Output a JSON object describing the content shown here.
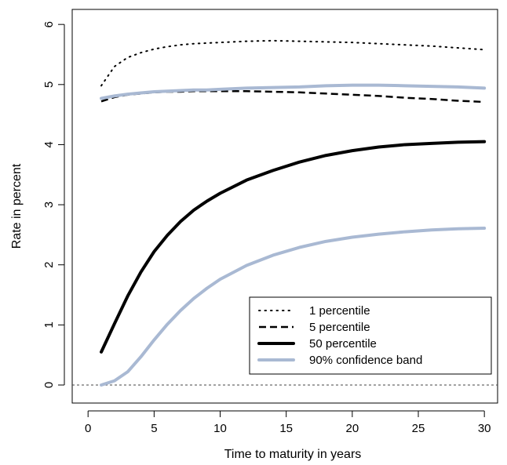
{
  "chart_data": {
    "type": "line",
    "xlabel": "Time to maturity in years",
    "ylabel": "Rate in percent",
    "xlim": [
      -1.2,
      31.0
    ],
    "ylim": [
      -0.3,
      6.25
    ],
    "x_ticks": [
      "0",
      "5",
      "10",
      "15",
      "20",
      "25",
      "30"
    ],
    "y_ticks": [
      "0",
      "1",
      "2",
      "3",
      "4",
      "5",
      "6"
    ],
    "reference_line": {
      "y": 0,
      "style": "dotted"
    },
    "legend_position": "bottom-right",
    "x": [
      1,
      2,
      3,
      4,
      5,
      6,
      7,
      8,
      9,
      10,
      12,
      14,
      16,
      18,
      20,
      22,
      24,
      26,
      28,
      30
    ],
    "series": [
      {
        "name": "1 percentile",
        "style": "dotted",
        "color": "#000000",
        "values": [
          4.98,
          5.3,
          5.45,
          5.53,
          5.59,
          5.63,
          5.66,
          5.68,
          5.69,
          5.7,
          5.72,
          5.73,
          5.72,
          5.71,
          5.7,
          5.68,
          5.66,
          5.64,
          5.61,
          5.58
        ]
      },
      {
        "name": "5 percentile",
        "style": "dashed",
        "color": "#000000",
        "values": [
          4.72,
          4.79,
          4.83,
          4.85,
          4.87,
          4.88,
          4.88,
          4.89,
          4.89,
          4.89,
          4.89,
          4.88,
          4.87,
          4.85,
          4.83,
          4.81,
          4.78,
          4.76,
          4.73,
          4.71
        ]
      },
      {
        "name": "50 percentile",
        "style": "solid-thick",
        "color": "#000000",
        "values": [
          0.55,
          1.02,
          1.48,
          1.88,
          2.22,
          2.49,
          2.72,
          2.91,
          3.06,
          3.19,
          3.41,
          3.57,
          3.71,
          3.82,
          3.9,
          3.96,
          4.0,
          4.02,
          4.04,
          4.05
        ]
      },
      {
        "name": "90% confidence band",
        "style": "solid-band",
        "color": "#a9b9d3",
        "values": [
          4.77,
          4.81,
          4.84,
          4.86,
          4.88,
          4.89,
          4.9,
          4.91,
          4.91,
          4.92,
          4.94,
          4.95,
          4.96,
          4.98,
          4.99,
          4.99,
          4.98,
          4.97,
          4.96,
          4.94
        ]
      },
      {
        "name": "",
        "style": "solid-band",
        "color": "#a9b9d3",
        "values": [
          0.0,
          0.07,
          0.22,
          0.47,
          0.75,
          1.01,
          1.24,
          1.44,
          1.61,
          1.76,
          1.99,
          2.16,
          2.29,
          2.39,
          2.46,
          2.51,
          2.55,
          2.58,
          2.6,
          2.61
        ]
      }
    ]
  }
}
